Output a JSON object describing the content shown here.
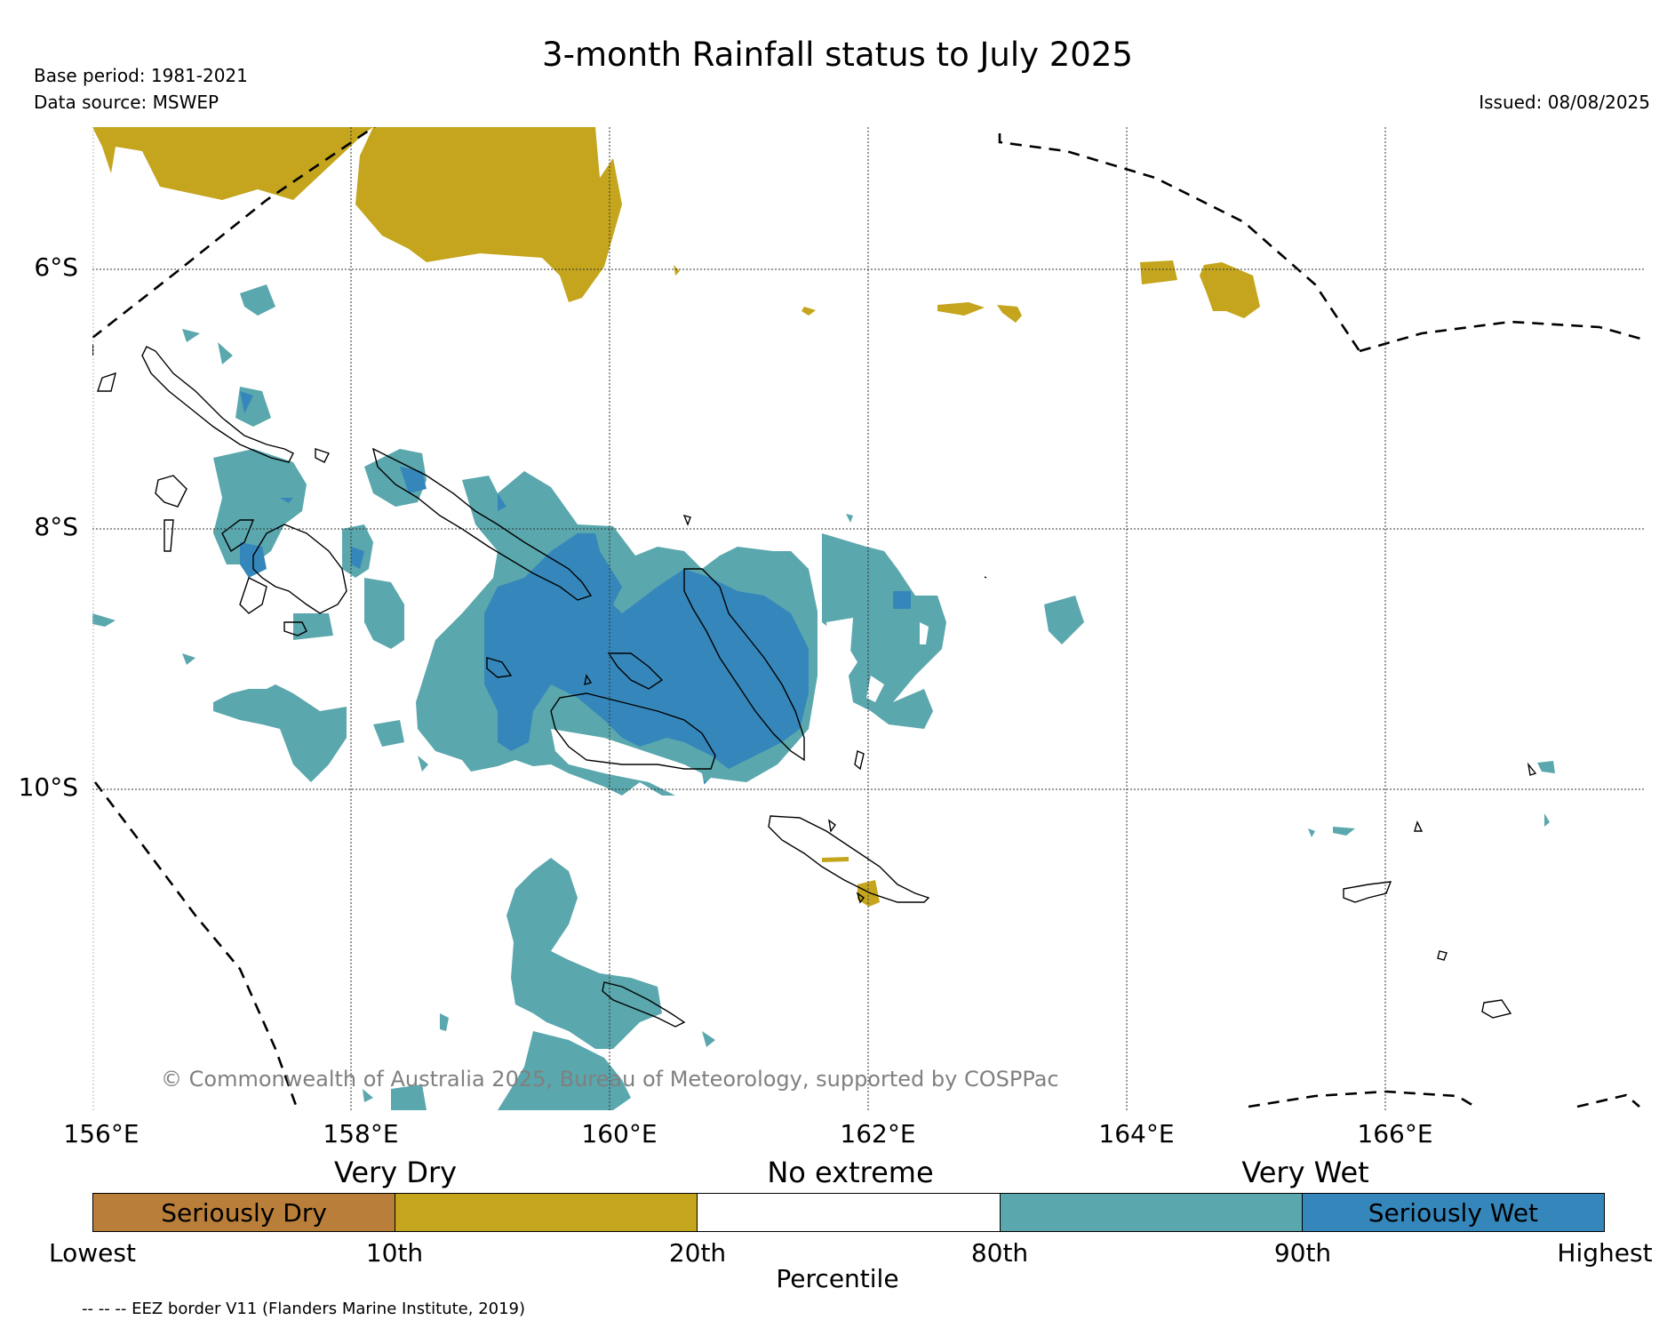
{
  "title": "3-month Rainfall status to July 2025",
  "base_period": "Base period: 1981-2021",
  "data_source": "Data source: MSWEP",
  "issued": "Issued: 08/08/2025",
  "copyright": "© Commonwealth of Australia 2025, Bureau of Meteorology, supported by COSPPac",
  "longitude_labels": [
    "156°E",
    "158°E",
    "160°E",
    "162°E",
    "164°E",
    "166°E"
  ],
  "latitude_labels": [
    "6°S",
    "8°S",
    "10°S"
  ],
  "legend": {
    "group_labels": [
      "Very Dry",
      "No extreme",
      "Very Wet"
    ],
    "categories": [
      {
        "label": "Seriously Dry",
        "color": "#b97e3a"
      },
      {
        "label": "",
        "color": "#c4a51d"
      },
      {
        "label": "",
        "color": "#ffffff"
      },
      {
        "label": "",
        "color": "#5aa7ad"
      },
      {
        "label": "Seriously Wet",
        "color": "#3587bb"
      }
    ],
    "ticks": [
      "Lowest",
      "10th",
      "20th",
      "80th",
      "90th",
      "Highest"
    ],
    "xlabel": "Percentile"
  },
  "eez_note": "-- -- -- EEZ border V11 (Flanders Marine Institute, 2019)",
  "colors": {
    "very_dry": "#c4a51d",
    "seriously_dry": "#b97e3a",
    "very_wet": "#5aa7ad",
    "seriously_wet": "#3587bb"
  }
}
